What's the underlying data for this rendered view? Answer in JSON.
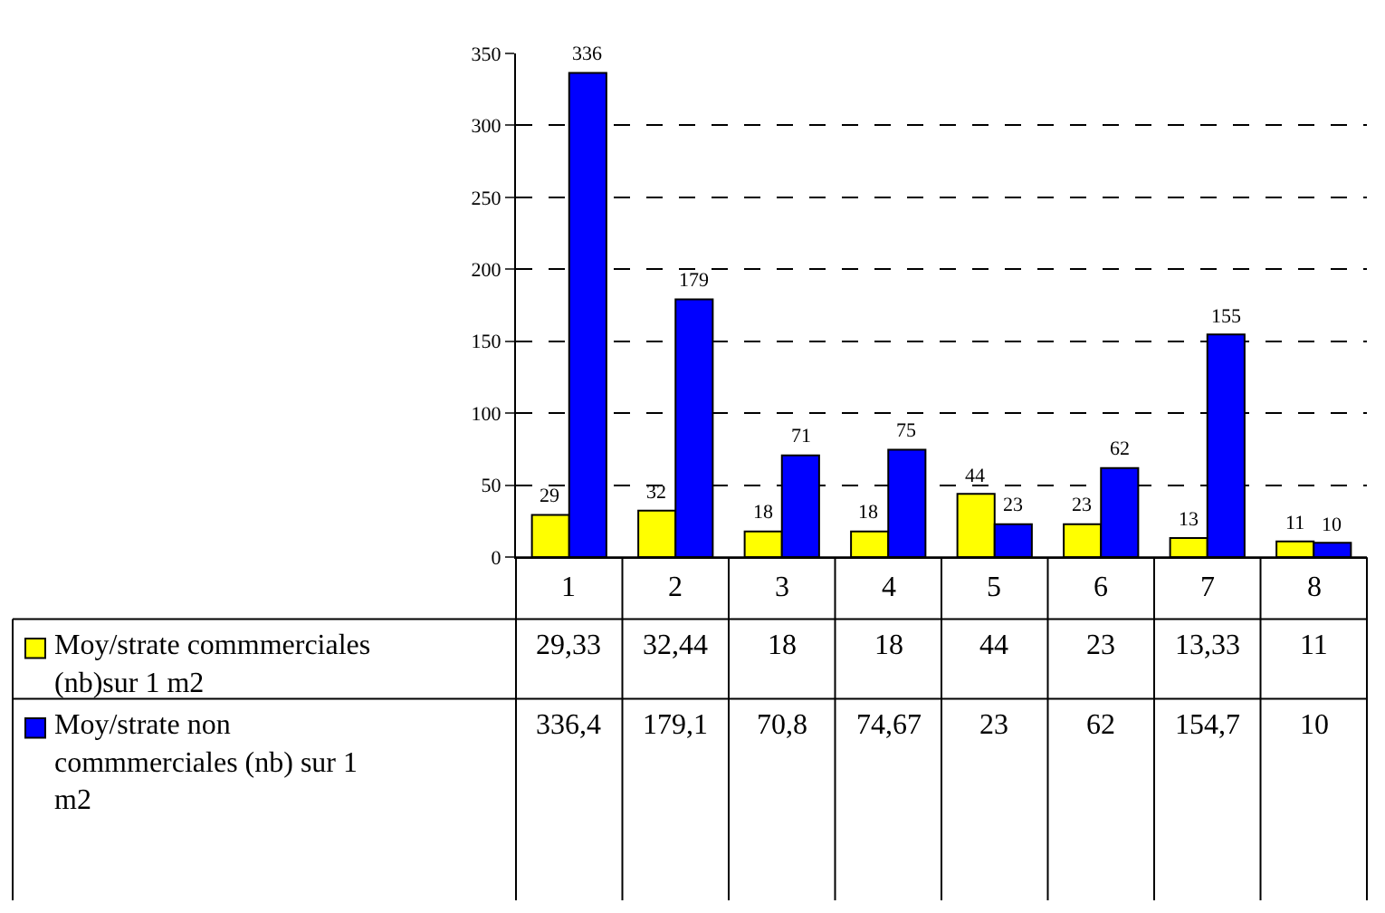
{
  "chart_data": {
    "type": "bar",
    "categories": [
      "1",
      "2",
      "3",
      "4",
      "5",
      "6",
      "7",
      "8"
    ],
    "series": [
      {
        "name": "Moy/strate commmerciales (nb)sur 1 m2",
        "color": "#ffff00",
        "values": [
          29.33,
          32.44,
          18,
          18,
          44,
          23,
          13.33,
          11
        ],
        "value_labels": [
          "29,33",
          "32,44",
          "18",
          "18",
          "44",
          "23",
          "13,33",
          "11"
        ]
      },
      {
        "name": "Moy/strate non commmerciales (nb) sur 1 m2",
        "color": "#0000ff",
        "values": [
          336.4,
          179.1,
          70.8,
          74.67,
          23,
          62,
          154.7,
          10
        ],
        "value_labels": [
          "336,4",
          "179,1",
          "70,8",
          "74,67",
          "23",
          "62",
          "154,7",
          "10"
        ]
      }
    ],
    "annotations": [
      {
        "text": "29",
        "x": "1",
        "y": 29.33
      },
      {
        "text": "32",
        "x": "2",
        "y": 32.44
      },
      {
        "text": "18",
        "x": "3",
        "y": 18
      },
      {
        "text": "18",
        "x": "4",
        "y": 18
      },
      {
        "text": "44",
        "x": "5",
        "y": 44
      },
      {
        "text": "23",
        "x": "6",
        "y": 23
      },
      {
        "text": "13",
        "x": "7",
        "y": 13.33
      },
      {
        "text": "11",
        "x": "8",
        "y": 11
      },
      {
        "text": "336",
        "x": "1",
        "y": 336.4
      },
      {
        "text": "179",
        "x": "2",
        "y": 179.1
      },
      {
        "text": "71",
        "x": "3",
        "y": 70.8
      },
      {
        "text": "75",
        "x": "4",
        "y": 74.67
      },
      {
        "text": "23",
        "x": "5",
        "y": 23
      },
      {
        "text": "62",
        "x": "6",
        "y": 62
      },
      {
        "text": "155",
        "x": "7",
        "y": 154.7
      },
      {
        "text": "10",
        "x": "8",
        "y": 10
      }
    ],
    "ylim": [
      0,
      350
    ],
    "yticks": [
      0,
      50,
      100,
      150,
      200,
      250,
      300,
      350
    ],
    "grid": "y",
    "legend": "bottom",
    "tick_labels": "y"
  }
}
